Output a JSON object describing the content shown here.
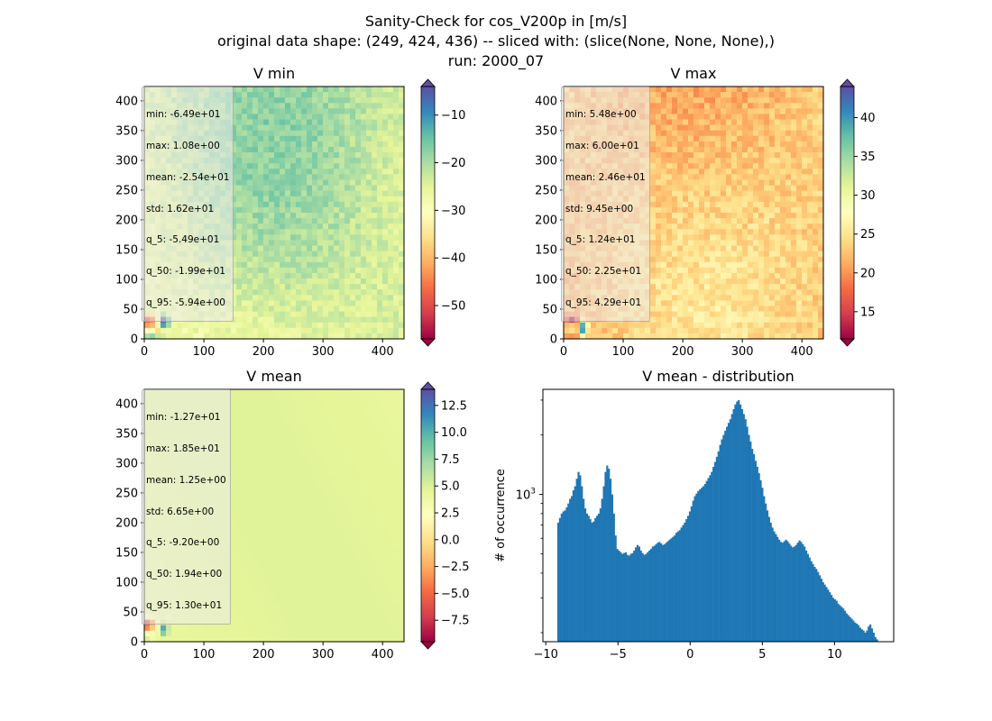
{
  "suptitle": {
    "line1": "Sanity-Check for cos_V200p in [m/s]",
    "line2": "original data shape: (249, 424, 436) -- sliced with: (slice(None, None, None),)",
    "line3": "run: 2000_07"
  },
  "colors": {
    "cmap": "Spectral",
    "hist_bar": "#1f77b4",
    "axis": "#000000"
  },
  "chart_data": [
    {
      "type": "heatmap",
      "title": "V min",
      "x_ticks": [
        0,
        100,
        200,
        300,
        400
      ],
      "y_ticks": [
        0,
        50,
        100,
        150,
        200,
        250,
        300,
        350,
        400
      ],
      "xlim": [
        0,
        436
      ],
      "ylim": [
        0,
        424
      ],
      "colorbar": {
        "range": [
          -57,
          -4
        ],
        "ticks": [
          -50,
          -40,
          -30,
          -20,
          -10
        ],
        "extend": "both"
      },
      "stats": [
        "min: -6.49e+01",
        "max: 1.08e+00",
        "mean: -2.54e+01",
        "std: 1.62e+01",
        "q_5: -5.49e+01",
        "q_50: -1.99e+01",
        "q_95: -5.94e+00"
      ]
    },
    {
      "type": "heatmap",
      "title": "V max",
      "x_ticks": [
        0,
        100,
        200,
        300,
        400
      ],
      "y_ticks": [
        0,
        50,
        100,
        150,
        200,
        250,
        300,
        350,
        400
      ],
      "xlim": [
        0,
        436
      ],
      "ylim": [
        0,
        424
      ],
      "colorbar": {
        "range": [
          11.5,
          44
        ],
        "ticks": [
          15,
          20,
          25,
          30,
          35,
          40
        ],
        "extend": "both"
      },
      "stats": [
        "min: 5.48e+00",
        "max: 6.00e+01",
        "mean: 2.46e+01",
        "std: 9.45e+00",
        "q_5: 1.24e+01",
        "q_50: 2.25e+01",
        "q_95: 4.29e+01"
      ]
    },
    {
      "type": "heatmap",
      "title": "V mean",
      "x_ticks": [
        0,
        100,
        200,
        300,
        400
      ],
      "y_ticks": [
        0,
        50,
        100,
        150,
        200,
        250,
        300,
        350,
        400
      ],
      "xlim": [
        0,
        436
      ],
      "ylim": [
        0,
        424
      ],
      "colorbar": {
        "range": [
          -9.5,
          14
        ],
        "ticks": [
          -7.5,
          -5.0,
          -2.5,
          0.0,
          2.5,
          5.0,
          7.5,
          10.0,
          12.5
        ],
        "extend": "both"
      },
      "stats": [
        "min: -1.27e+01",
        "max: 1.85e+01",
        "mean: 1.25e+00",
        "std: 6.65e+00",
        "q_5: -9.20e+00",
        "q_50: 1.94e+00",
        "q_95: 1.30e+01"
      ]
    },
    {
      "type": "bar",
      "title": "V mean - distribution",
      "ylabel": "# of occurrence",
      "xlabel": "",
      "y_scale": "log",
      "xlim": [
        -10.2,
        14.1
      ],
      "ylim": [
        180,
        3400
      ],
      "x_ticks": [
        -10,
        -5,
        0,
        5,
        10
      ],
      "y_tick_label": "10^3",
      "bin_range": [
        -9.2,
        13.0
      ],
      "counts": [
        720,
        760,
        800,
        820,
        830,
        860,
        900,
        950,
        980,
        1050,
        1100,
        1200,
        1300,
        1250,
        1100,
        950,
        850,
        800,
        780,
        750,
        720,
        730,
        760,
        780,
        800,
        850,
        950,
        1100,
        1300,
        1400,
        1350,
        1200,
        1000,
        800,
        620,
        530,
        520,
        510,
        500,
        505,
        510,
        495,
        490,
        500,
        505,
        520,
        540,
        555,
        545,
        520,
        505,
        495,
        500,
        510,
        520,
        530,
        545,
        550,
        560,
        570,
        575,
        565,
        555,
        560,
        570,
        580,
        590,
        600,
        610,
        620,
        640,
        650,
        660,
        680,
        700,
        720,
        750,
        780,
        820,
        870,
        930,
        980,
        1010,
        1040,
        1060,
        1080,
        1100,
        1130,
        1170,
        1210,
        1250,
        1300,
        1380,
        1460,
        1550,
        1650,
        1780,
        1900,
        2000,
        2100,
        2200,
        2300,
        2400,
        2550,
        2700,
        2850,
        2950,
        3000,
        2850,
        2700,
        2550,
        2400,
        2200,
        2000,
        1850,
        1700,
        1600,
        1480,
        1380,
        1280,
        1180,
        1080,
        980,
        900,
        830,
        770,
        720,
        680,
        650,
        630,
        610,
        590,
        575,
        570,
        580,
        590,
        580,
        565,
        550,
        540,
        545,
        555,
        570,
        585,
        575,
        560,
        545,
        520,
        500,
        480,
        460,
        445,
        430,
        420,
        405,
        390,
        375,
        360,
        350,
        340,
        330,
        320,
        310,
        300,
        295,
        290,
        280,
        275,
        270,
        265,
        258,
        250,
        245,
        240,
        235,
        230,
        225,
        222,
        218,
        212,
        208,
        205,
        200,
        205,
        215,
        220,
        210,
        200,
        190,
        185
      ]
    }
  ]
}
